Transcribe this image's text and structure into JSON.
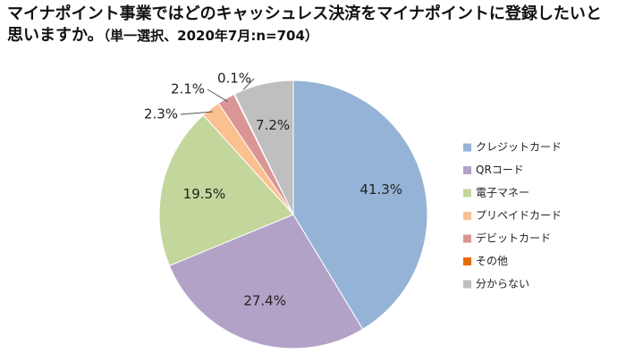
{
  "chart_data": {
    "type": "pie",
    "title": "マイナポイント事業ではどのキャッシュレス決済をマイナポイントに登録したいと思いますか。",
    "subtitle": "（単一選択、2020年7月:n=704）",
    "categories": [
      "クレジットカード",
      "QRコード",
      "電子マネー",
      "プリペイドカード",
      "デビットカード",
      "その他",
      "分からない"
    ],
    "values": [
      41.3,
      27.4,
      19.5,
      2.3,
      2.1,
      0.1,
      7.2
    ],
    "value_labels": [
      "41.3%",
      "27.4%",
      "19.5%",
      "2.3%",
      "2.1%",
      "0.1%",
      "7.2%"
    ],
    "colors": [
      "#95b3d7",
      "#b3a2c7",
      "#c3d69b",
      "#fac090",
      "#d99694",
      "#e46c0a",
      "#bfbfbf"
    ],
    "legend": "right"
  }
}
